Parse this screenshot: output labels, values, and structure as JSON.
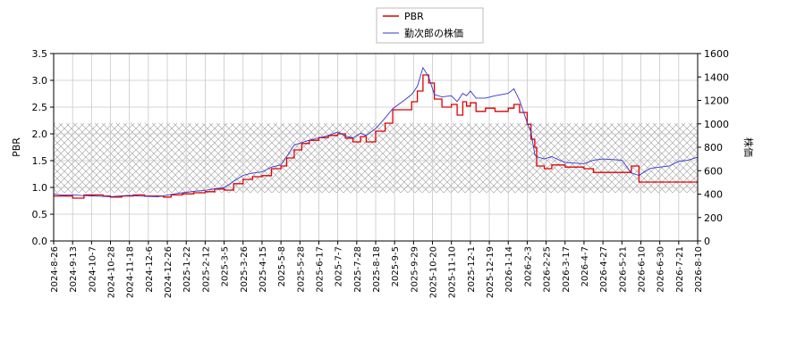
{
  "chart_data": {
    "type": "line",
    "title": "",
    "legend": {
      "placement": "top-center",
      "entries": [
        "PBR",
        "勤次郎の株価"
      ]
    },
    "grid": true,
    "y_left": {
      "label": "PBR",
      "ylim": [
        0,
        3.5
      ],
      "ticks": [
        "0.0",
        "0.5",
        "1.0",
        "1.5",
        "2.0",
        "2.5",
        "3.0",
        "3.5"
      ]
    },
    "y_right": {
      "label": "株価",
      "ylim": [
        0,
        1600
      ],
      "ticks": [
        "0",
        "200",
        "400",
        "600",
        "800",
        "1000",
        "1200",
        "1400",
        "1600"
      ]
    },
    "x_ticks": [
      "2024-8-26",
      "2024-9-13",
      "2024-10-7",
      "2024-10-28",
      "2024-11-18",
      "2024-12-6",
      "2024-12-26",
      "2025-1-22",
      "2025-2-12",
      "2025-3-5",
      "2025-3-26",
      "2025-4-15",
      "2025-5-8",
      "2025-5-28",
      "2025-6-17",
      "2025-7-7",
      "2025-7-28",
      "2025-8-18",
      "2025-9-5",
      "2025-9-29",
      "2025-10-20",
      "2025-11-10",
      "2025-12-1",
      "2025-12-19",
      "2026-1-14",
      "2026-2-3",
      "2026-2-25",
      "2026-3-17",
      "2026-4-7",
      "2026-4-27",
      "2026-5-21",
      "2026-6-10",
      "2026-6-30",
      "2026-7-21",
      "2026-8-10"
    ],
    "band": {
      "axis": "left",
      "y_from": 0.9,
      "y_to": 2.2,
      "pattern": "crosshatch"
    },
    "series": [
      {
        "name": "PBR",
        "axis": "left",
        "color": "#dd0000",
        "points": [
          [
            0,
            0.84
          ],
          [
            1,
            0.8
          ],
          [
            1.6,
            0.86
          ],
          [
            2.6,
            0.84
          ],
          [
            3.0,
            0.82
          ],
          [
            3.6,
            0.84
          ],
          [
            4.2,
            0.86
          ],
          [
            4.8,
            0.84
          ],
          [
            5.8,
            0.82
          ],
          [
            6.2,
            0.86
          ],
          [
            6.8,
            0.88
          ],
          [
            7.4,
            0.9
          ],
          [
            8.0,
            0.92
          ],
          [
            8.5,
            0.97
          ],
          [
            9.0,
            0.95
          ],
          [
            9.5,
            1.07
          ],
          [
            10.0,
            1.15
          ],
          [
            10.5,
            1.2
          ],
          [
            11.0,
            1.22
          ],
          [
            11.5,
            1.35
          ],
          [
            12.0,
            1.4
          ],
          [
            12.3,
            1.55
          ],
          [
            12.7,
            1.7
          ],
          [
            13.1,
            1.82
          ],
          [
            13.5,
            1.88
          ],
          [
            14.0,
            1.93
          ],
          [
            14.5,
            1.97
          ],
          [
            15.0,
            2.0
          ],
          [
            15.4,
            1.92
          ],
          [
            15.8,
            1.85
          ],
          [
            16.2,
            1.95
          ],
          [
            16.5,
            1.85
          ],
          [
            17.0,
            2.05
          ],
          [
            17.5,
            2.2
          ],
          [
            17.9,
            2.45
          ],
          [
            18.5,
            2.45
          ],
          [
            18.9,
            2.6
          ],
          [
            19.2,
            2.8
          ],
          [
            19.5,
            3.1
          ],
          [
            19.8,
            2.95
          ],
          [
            20.1,
            2.65
          ],
          [
            20.5,
            2.5
          ],
          [
            21.0,
            2.55
          ],
          [
            21.3,
            2.35
          ],
          [
            21.6,
            2.6
          ],
          [
            21.8,
            2.52
          ],
          [
            22.0,
            2.58
          ],
          [
            22.3,
            2.42
          ],
          [
            22.8,
            2.48
          ],
          [
            23.3,
            2.42
          ],
          [
            24.0,
            2.48
          ],
          [
            24.3,
            2.55
          ],
          [
            24.6,
            2.4
          ],
          [
            25.0,
            2.18
          ],
          [
            25.2,
            1.9
          ],
          [
            25.4,
            1.75
          ],
          [
            25.5,
            1.4
          ],
          [
            25.9,
            1.35
          ],
          [
            26.3,
            1.42
          ],
          [
            27.0,
            1.38
          ],
          [
            28.0,
            1.35
          ],
          [
            28.5,
            1.28
          ],
          [
            29.0,
            1.28
          ],
          [
            30.0,
            1.28
          ],
          [
            30.5,
            1.4
          ],
          [
            30.9,
            1.1
          ],
          [
            31.5,
            1.1
          ],
          [
            32.5,
            1.1
          ],
          [
            33.5,
            1.1
          ],
          [
            34.1,
            1.1
          ],
          [
            34.4,
            1.42
          ],
          [
            35.0,
            1.42
          ]
        ]
      },
      {
        "name": "勤次郎の株価",
        "axis": "right",
        "color": "#3333cc",
        "points": [
          [
            0,
            400
          ],
          [
            0.5,
            392
          ],
          [
            1,
            395
          ],
          [
            1.5,
            388
          ],
          [
            2.0,
            385
          ],
          [
            2.5,
            382
          ],
          [
            3.0,
            378
          ],
          [
            3.5,
            384
          ],
          [
            4.0,
            390
          ],
          [
            4.5,
            383
          ],
          [
            5.0,
            380
          ],
          [
            5.5,
            378
          ],
          [
            6.0,
            392
          ],
          [
            6.5,
            405
          ],
          [
            7.0,
            415
          ],
          [
            7.5,
            425
          ],
          [
            8.0,
            432
          ],
          [
            8.5,
            445
          ],
          [
            9.0,
            455
          ],
          [
            9.5,
            510
          ],
          [
            10.0,
            560
          ],
          [
            10.5,
            580
          ],
          [
            11.0,
            590
          ],
          [
            11.5,
            630
          ],
          [
            12.0,
            650
          ],
          [
            12.3,
            720
          ],
          [
            12.7,
            820
          ],
          [
            13.1,
            840
          ],
          [
            13.5,
            860
          ],
          [
            14.0,
            880
          ],
          [
            14.5,
            900
          ],
          [
            15.0,
            930
          ],
          [
            15.4,
            895
          ],
          [
            15.8,
            880
          ],
          [
            16.2,
            920
          ],
          [
            16.5,
            900
          ],
          [
            17.0,
            960
          ],
          [
            17.5,
            1050
          ],
          [
            17.9,
            1130
          ],
          [
            18.5,
            1200
          ],
          [
            18.9,
            1250
          ],
          [
            19.2,
            1320
          ],
          [
            19.5,
            1480
          ],
          [
            19.8,
            1400
          ],
          [
            20.1,
            1250
          ],
          [
            20.5,
            1230
          ],
          [
            21.0,
            1240
          ],
          [
            21.3,
            1190
          ],
          [
            21.6,
            1260
          ],
          [
            21.8,
            1240
          ],
          [
            22.0,
            1280
          ],
          [
            22.3,
            1220
          ],
          [
            22.8,
            1220
          ],
          [
            23.3,
            1240
          ],
          [
            24.0,
            1260
          ],
          [
            24.3,
            1300
          ],
          [
            24.6,
            1200
          ],
          [
            25.0,
            1010
          ],
          [
            25.2,
            930
          ],
          [
            25.4,
            740
          ],
          [
            25.5,
            720
          ],
          [
            25.9,
            700
          ],
          [
            26.3,
            720
          ],
          [
            27.0,
            670
          ],
          [
            28.0,
            660
          ],
          [
            28.5,
            690
          ],
          [
            29.0,
            700
          ],
          [
            30.0,
            690
          ],
          [
            30.5,
            580
          ],
          [
            30.9,
            560
          ],
          [
            31.5,
            620
          ],
          [
            32.5,
            640
          ],
          [
            33.0,
            680
          ],
          [
            33.5,
            690
          ],
          [
            34.1,
            720
          ],
          [
            34.4,
            700
          ],
          [
            35.0,
            660
          ]
        ]
      }
    ]
  }
}
